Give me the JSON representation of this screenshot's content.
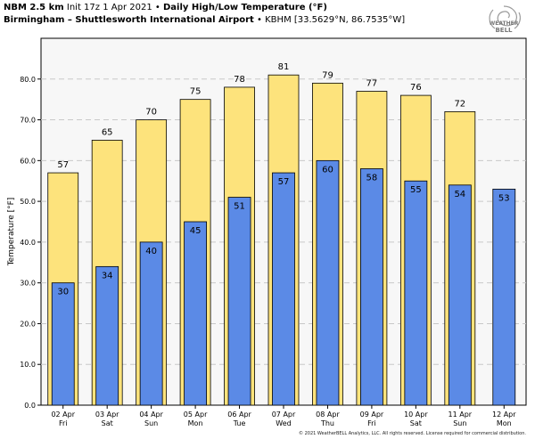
{
  "header": {
    "model": "NBM 2.5 km",
    "init": "Init 17z 1 Apr 2021",
    "title": "Daily High/Low Temperature (°F)",
    "location": "Birmingham – Shuttlesworth International Airport",
    "station": "KBHM [33.5629°N, 86.7535°W]",
    "bullet": "•"
  },
  "logo": {
    "line1": "WEATHER",
    "line2": "BELL",
    "icon": "swirl-logo-icon"
  },
  "credit": "© 2021 WeatherBELL Analytics, LLC. All rights reserved. License required for commercial distribution.",
  "chart_data": {
    "type": "bar",
    "ylabel": "Temperature [°F]",
    "ylim": [
      0,
      90
    ],
    "yticks": [
      "0.0",
      "10.0",
      "20.0",
      "30.0",
      "40.0",
      "50.0",
      "60.0",
      "70.0",
      "80.0"
    ],
    "grid": true,
    "categories": [
      [
        "02 Apr",
        "Fri"
      ],
      [
        "03 Apr",
        "Sat"
      ],
      [
        "04 Apr",
        "Sun"
      ],
      [
        "05 Apr",
        "Mon"
      ],
      [
        "06 Apr",
        "Tue"
      ],
      [
        "07 Apr",
        "Wed"
      ],
      [
        "08 Apr",
        "Thu"
      ],
      [
        "09 Apr",
        "Fri"
      ],
      [
        "10 Apr",
        "Sat"
      ],
      [
        "11 Apr",
        "Sun"
      ],
      [
        "12 Apr",
        "Mon"
      ]
    ],
    "series": [
      {
        "values": [
          57,
          65,
          70,
          75,
          78,
          81,
          79,
          77,
          76,
          72,
          null
        ],
        "color": "#fde37c"
      },
      {
        "values": [
          30,
          34,
          40,
          45,
          51,
          57,
          60,
          58,
          55,
          54,
          53
        ],
        "color": "#5b8ae6"
      }
    ],
    "label_values": [
      [
        "57",
        "65",
        "70",
        "75",
        "78",
        "81",
        "79",
        "77",
        "76",
        "72",
        ""
      ],
      [
        "30",
        "34",
        "40",
        "45",
        "51",
        "57",
        "60",
        "58",
        "55",
        "54",
        "53"
      ]
    ]
  }
}
